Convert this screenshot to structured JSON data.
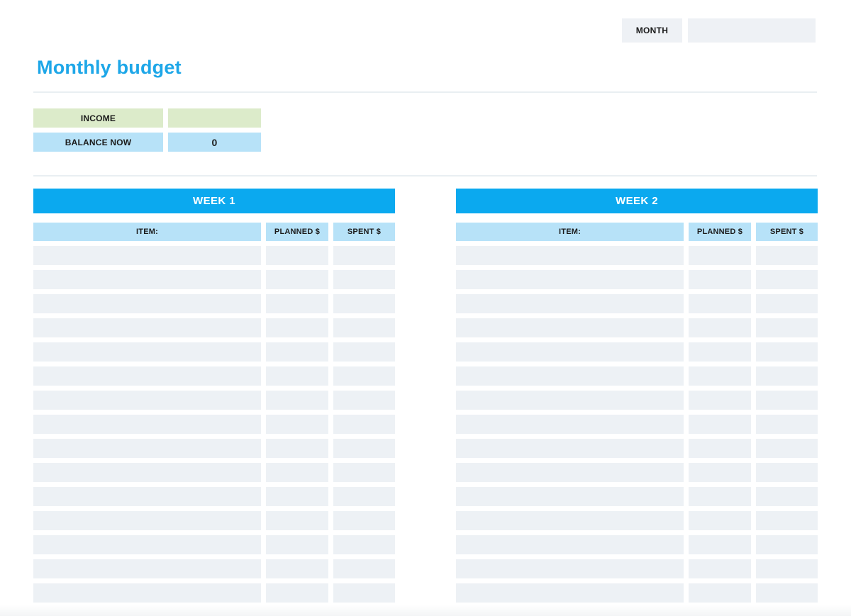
{
  "colors": {
    "accent_blue": "#0ba9ef",
    "title_blue": "#1ea7e8",
    "light_blue": "#b7e2f8",
    "green": "#dcebca",
    "row_gray": "#edf1f5",
    "box_gray": "#eef1f5"
  },
  "header": {
    "month_label": "MONTH",
    "month_value": ""
  },
  "title": "Monthly budget",
  "summary": {
    "income_label": "INCOME",
    "income_value": "",
    "balance_label": "BALANCE NOW",
    "balance_value": "0"
  },
  "weeks": [
    {
      "title": "WEEK 1",
      "columns": {
        "item": "ITEM:",
        "planned": "PLANNED $",
        "spent": "SPENT $"
      },
      "row_count": 15
    },
    {
      "title": "WEEK 2",
      "columns": {
        "item": "ITEM:",
        "planned": "PLANNED $",
        "spent": "SPENT $"
      },
      "row_count": 15
    }
  ]
}
